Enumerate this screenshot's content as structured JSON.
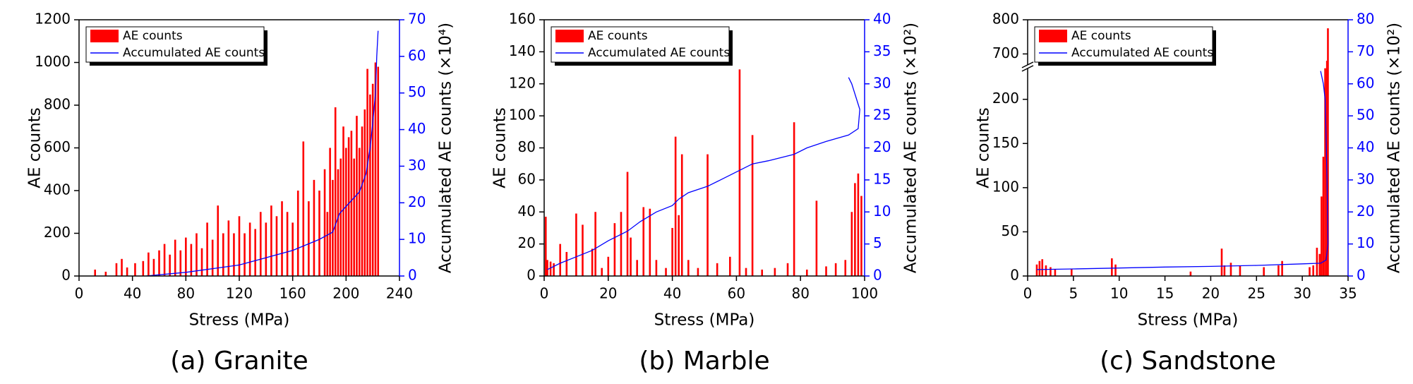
{
  "chart_data": [
    {
      "type": "bar_line",
      "caption": "(a) Granite",
      "xlabel": "Stress (MPa)",
      "ylabel": "AE counts",
      "y2label": "Accumulated AE counts (×10⁴)",
      "xlim": [
        0,
        240
      ],
      "xticks": [
        0,
        40,
        80,
        120,
        160,
        200,
        240
      ],
      "ylim": [
        0,
        1200
      ],
      "yticks": [
        0,
        200,
        400,
        600,
        800,
        1000,
        1200
      ],
      "y2lim": [
        0,
        70
      ],
      "y2ticks": [
        0,
        10,
        20,
        30,
        40,
        50,
        60,
        70
      ],
      "y2color": "#0000ff",
      "legend": "upper left",
      "series": [
        {
          "name": "AE counts",
          "type": "bar",
          "color": "#ff0000",
          "x": [
            12,
            20,
            28,
            32,
            36,
            42,
            48,
            52,
            56,
            60,
            64,
            68,
            72,
            76,
            80,
            84,
            88,
            92,
            96,
            100,
            104,
            108,
            112,
            116,
            120,
            124,
            128,
            132,
            136,
            140,
            144,
            148,
            152,
            156,
            160,
            164,
            168,
            172,
            176,
            180,
            184,
            186,
            188,
            190,
            192,
            194,
            196,
            198,
            200,
            202,
            204,
            206,
            208,
            210,
            212,
            214,
            216,
            218,
            220,
            222,
            224
          ],
          "values": [
            30,
            20,
            60,
            80,
            40,
            60,
            70,
            110,
            80,
            120,
            150,
            100,
            170,
            120,
            180,
            150,
            200,
            130,
            250,
            170,
            330,
            200,
            260,
            200,
            280,
            200,
            250,
            220,
            300,
            250,
            330,
            280,
            350,
            300,
            250,
            400,
            630,
            350,
            450,
            400,
            500,
            300,
            600,
            450,
            790,
            500,
            550,
            700,
            600,
            650,
            680,
            550,
            750,
            600,
            700,
            780,
            970,
            850,
            900,
            1000,
            980
          ]
        },
        {
          "name": "Accumulated AE counts",
          "type": "line",
          "color": "#0000ff",
          "axis": "y2",
          "x": [
            50,
            80,
            100,
            120,
            140,
            160,
            180,
            190,
            195,
            200,
            205,
            210,
            215,
            218,
            220,
            222,
            223,
            224
          ],
          "values": [
            0,
            1,
            2,
            3,
            5,
            7,
            10,
            12,
            17,
            19,
            21,
            23,
            28,
            35,
            42,
            50,
            60,
            67
          ]
        }
      ]
    },
    {
      "type": "bar_line",
      "caption": "(b) Marble",
      "xlabel": "Stress (MPa)",
      "ylabel": "AE counts",
      "y2label": "Accumulated AE counts (×10²)",
      "xlim": [
        0,
        100
      ],
      "xticks": [
        0,
        20,
        40,
        60,
        80,
        100
      ],
      "ylim": [
        0,
        160
      ],
      "yticks": [
        0,
        20,
        40,
        60,
        80,
        100,
        120,
        140,
        160
      ],
      "y2lim": [
        0,
        40
      ],
      "y2ticks": [
        0,
        5,
        10,
        15,
        20,
        25,
        30,
        35,
        40
      ],
      "y2color": "#0000ff",
      "legend": "upper left",
      "series": [
        {
          "name": "AE counts",
          "type": "bar",
          "color": "#ff0000",
          "x": [
            0.5,
            1,
            2,
            3,
            5,
            7,
            10,
            12,
            15,
            16,
            18,
            20,
            22,
            24,
            26,
            27,
            29,
            31,
            33,
            35,
            38,
            40,
            41,
            42,
            43,
            45,
            48,
            51,
            54,
            58,
            61,
            63,
            65,
            68,
            72,
            76,
            78,
            82,
            85,
            88,
            91,
            94,
            96,
            97,
            98,
            99
          ],
          "values": [
            37,
            10,
            9,
            8,
            20,
            15,
            39,
            32,
            17,
            40,
            5,
            12,
            33,
            40,
            65,
            24,
            10,
            43,
            42,
            10,
            5,
            30,
            87,
            38,
            76,
            10,
            5,
            76,
            8,
            12,
            129,
            5,
            88,
            4,
            5,
            8,
            96,
            4,
            47,
            6,
            8,
            10,
            40,
            58,
            64,
            50
          ]
        },
        {
          "name": "Accumulated AE counts",
          "type": "line",
          "color": "#0000ff",
          "axis": "y2",
          "x": [
            1,
            5,
            10,
            15,
            20,
            26,
            30,
            35,
            40,
            42,
            45,
            51,
            55,
            61,
            65,
            70,
            78,
            82,
            88,
            95,
            98,
            98.5,
            96,
            95
          ],
          "values": [
            1,
            2,
            3,
            4,
            5.5,
            7,
            8.5,
            10,
            11,
            12,
            13,
            14,
            15,
            16.5,
            17.5,
            18,
            19,
            20,
            21,
            22,
            23,
            26,
            30,
            31
          ]
        }
      ]
    },
    {
      "type": "bar_line",
      "caption": "(c) Sandstone",
      "xlabel": "Stress (MPa)",
      "ylabel": "AE counts",
      "y2label": "Accumulated AE counts (×10²)",
      "xlim": [
        0,
        35
      ],
      "xticks": [
        0,
        5,
        10,
        15,
        20,
        25,
        30,
        35
      ],
      "ylim": [
        0,
        800
      ],
      "ybreak": [
        235,
        668
      ],
      "yticks": [
        0,
        50,
        100,
        150,
        200,
        700,
        800
      ],
      "y2lim": [
        0,
        80
      ],
      "y2ticks": [
        0,
        10,
        20,
        30,
        40,
        50,
        60,
        70,
        80
      ],
      "y2color": "#0000ff",
      "legend": "upper left",
      "series": [
        {
          "name": "AE counts",
          "type": "bar",
          "color": "#ff0000",
          "x": [
            1,
            1.3,
            1.6,
            2,
            2.5,
            3,
            4.8,
            9.2,
            9.6,
            17.8,
            21.2,
            21.5,
            22.2,
            23.2,
            25.8,
            27.4,
            27.8,
            30.8,
            31.2,
            31.6,
            31.9,
            32.1,
            32.3,
            32.5,
            32.7,
            32.8
          ],
          "values": [
            13,
            17,
            19,
            12,
            10,
            8,
            8,
            20,
            13,
            5,
            31,
            12,
            15,
            12,
            10,
            12,
            17,
            10,
            12,
            32,
            25,
            90,
            135,
            250,
            680,
            775
          ]
        },
        {
          "name": "Accumulated AE counts",
          "type": "line",
          "color": "#0000ff",
          "axis": "y2",
          "x": [
            1,
            5,
            10,
            15,
            20,
            25,
            30,
            32,
            32.6,
            32.8,
            32.7,
            32.5,
            32.3,
            32.0
          ],
          "values": [
            2,
            2.2,
            2.5,
            2.8,
            3,
            3.3,
            3.8,
            4,
            5,
            10,
            30,
            55,
            60,
            64
          ]
        }
      ]
    }
  ]
}
